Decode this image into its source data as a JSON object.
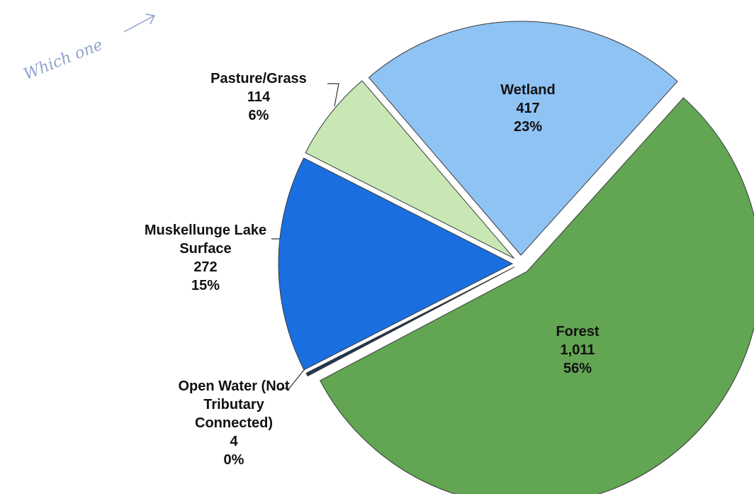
{
  "chart_data": {
    "type": "pie",
    "annotation": "Which one",
    "categories": [
      "Forest",
      "Open Water (Not Tributary Connected)",
      "Muskellunge Lake Surface",
      "Pasture/Grass",
      "Wetland"
    ],
    "values": [
      1011,
      4,
      272,
      114,
      417
    ],
    "value_labels": [
      "1,011",
      "4",
      "272",
      "114",
      "417"
    ],
    "percent_labels": [
      "56%",
      "0%",
      "15%",
      "6%",
      "23%"
    ],
    "colors": [
      "#62a553",
      "#1d3557",
      "#1a6fe0",
      "#c8e7b4",
      "#8fc3f4"
    ]
  }
}
